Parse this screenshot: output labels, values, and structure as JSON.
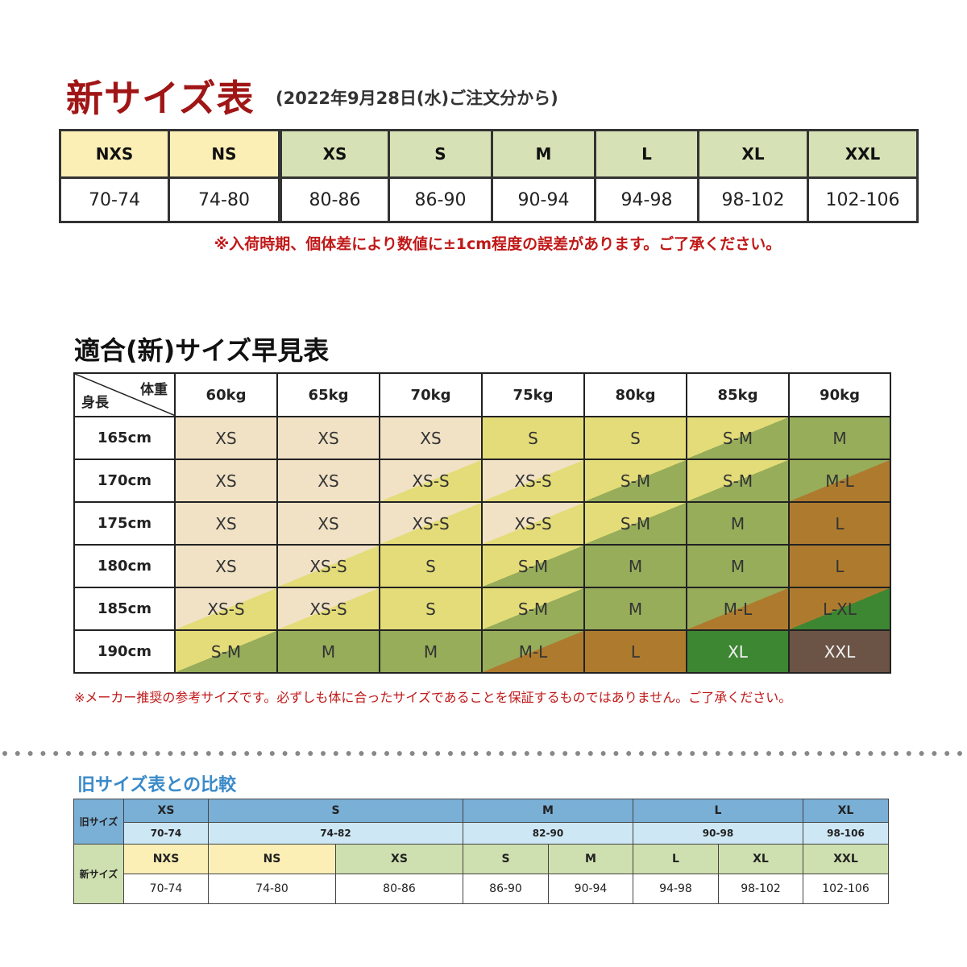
{
  "section1": {
    "title": "新サイズ表",
    "note": "(2022年9月28日(水)ご注文分から)",
    "sizes": [
      {
        "label": "NXS",
        "range": "70-74",
        "color": "#fbefb6"
      },
      {
        "label": "NS",
        "range": "74-80",
        "color": "#fbefb6"
      },
      {
        "label": "XS",
        "range": "80-86",
        "color": "#d6e2b5"
      },
      {
        "label": "S",
        "range": "86-90",
        "color": "#d6e2b5"
      },
      {
        "label": "M",
        "range": "90-94",
        "color": "#d6e2b5"
      },
      {
        "label": "L",
        "range": "94-98",
        "color": "#d6e2b5"
      },
      {
        "label": "XL",
        "range": "98-102",
        "color": "#d6e2b5"
      },
      {
        "label": "XXL",
        "range": "102-106",
        "color": "#d6e2b5"
      }
    ],
    "tolerance_note": "※入荷時期、個体差により数値に±1cm程度の誤差があります。ご了承ください。"
  },
  "section2": {
    "title": "適合(新)サイズ早見表",
    "corner_weight": "体重",
    "corner_height": "身長",
    "weights": [
      "60kg",
      "65kg",
      "70kg",
      "75kg",
      "80kg",
      "85kg",
      "90kg"
    ],
    "rows": [
      {
        "height": "165cm",
        "cells": [
          "XS",
          "XS",
          "XS",
          "S",
          "S",
          "S-M",
          "M"
        ]
      },
      {
        "height": "170cm",
        "cells": [
          "XS",
          "XS",
          "XS-S",
          "XS-S",
          "S-M",
          "S-M",
          "M-L"
        ]
      },
      {
        "height": "175cm",
        "cells": [
          "XS",
          "XS",
          "XS-S",
          "XS-S",
          "S-M",
          "M",
          "L"
        ]
      },
      {
        "height": "180cm",
        "cells": [
          "XS",
          "XS-S",
          "S",
          "S-M",
          "M",
          "M",
          "L"
        ]
      },
      {
        "height": "185cm",
        "cells": [
          "XS-S",
          "XS-S",
          "S",
          "S-M",
          "M",
          "M-L",
          "L-XL"
        ]
      },
      {
        "height": "190cm",
        "cells": [
          "S-M",
          "M",
          "M",
          "M-L",
          "L",
          "XL",
          "XXL"
        ]
      }
    ],
    "colors": {
      "XS": "#f1e2c6",
      "S": "#e4dc78",
      "M": "#97ad5a",
      "L": "#ae7b2e",
      "XL": "#3d8632",
      "XXL": "#6b5446"
    },
    "recommend_note": "※メーカー推奨の参考サイズです。必ずしも体に合ったサイズであることを保証するものではありません。ご了承ください。"
  },
  "section3": {
    "title": "旧サイズ表との比較",
    "old_label": "旧サイズ",
    "new_label": "新サイズ",
    "old_sizes": [
      {
        "label": "XS",
        "range": "70-74"
      },
      {
        "label": "S",
        "range": "74-82"
      },
      {
        "label": "M",
        "range": "82-90"
      },
      {
        "label": "L",
        "range": "90-98"
      },
      {
        "label": "XL",
        "range": "98-106"
      }
    ],
    "new_sizes": [
      {
        "label": "NXS",
        "range": "70-74",
        "color": "#fbefb6"
      },
      {
        "label": "NS",
        "range": "74-80",
        "color": "#fbefb6"
      },
      {
        "label": "XS",
        "range": "80-86",
        "color": "#cfe0b0"
      },
      {
        "label": "S",
        "range": "86-90",
        "color": "#cfe0b0"
      },
      {
        "label": "M",
        "range": "90-94",
        "color": "#cfe0b0"
      },
      {
        "label": "L",
        "range": "94-98",
        "color": "#cfe0b0"
      },
      {
        "label": "XL",
        "range": "98-102",
        "color": "#cfe0b0"
      },
      {
        "label": "XXL",
        "range": "102-106",
        "color": "#cfe0b0"
      }
    ]
  }
}
